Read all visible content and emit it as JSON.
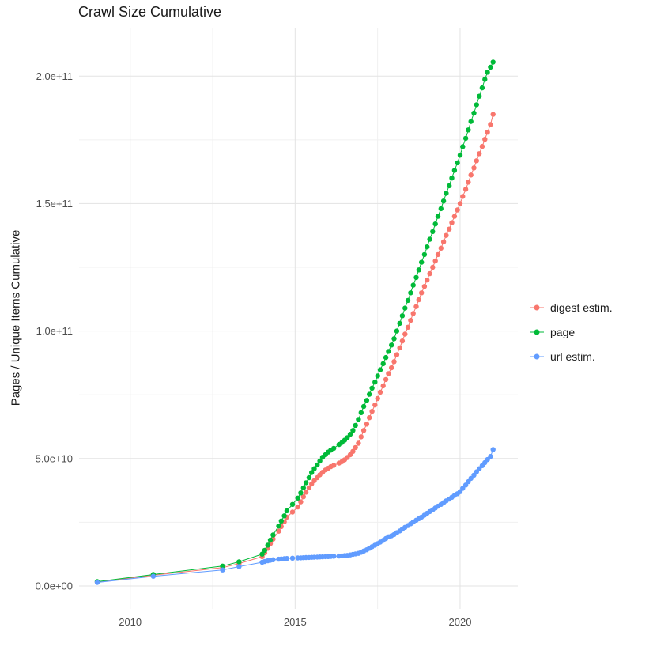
{
  "chart_data": {
    "type": "scatter",
    "title": "Crawl Size Cumulative",
    "xlabel": "",
    "ylabel": "Pages / Unique Items Cumulative",
    "legend_position": "right",
    "grid": true,
    "values_unit": "billions",
    "unit_multiplier": 1000000000,
    "x_years": [
      2009.0,
      2010.7,
      2012.8,
      2013.3,
      2014.0,
      2014.08,
      2014.17,
      2014.25,
      2014.33,
      2014.5,
      2014.58,
      2014.67,
      2014.75,
      2014.92,
      2015.08,
      2015.17,
      2015.25,
      2015.33,
      2015.42,
      2015.5,
      2015.58,
      2015.67,
      2015.75,
      2015.83,
      2015.92,
      2016.0,
      2016.08,
      2016.17,
      2016.33,
      2016.42,
      2016.5,
      2016.58,
      2016.67,
      2016.75,
      2016.83,
      2016.92,
      2017.0,
      2017.08,
      2017.17,
      2017.25,
      2017.33,
      2017.42,
      2017.5,
      2017.58,
      2017.67,
      2017.75,
      2017.83,
      2017.92,
      2018.0,
      2018.08,
      2018.17,
      2018.25,
      2018.33,
      2018.42,
      2018.5,
      2018.58,
      2018.67,
      2018.75,
      2018.83,
      2018.92,
      2019.0,
      2019.08,
      2019.17,
      2019.25,
      2019.33,
      2019.42,
      2019.5,
      2019.58,
      2019.67,
      2019.75,
      2019.83,
      2019.92,
      2020.0,
      2020.08,
      2020.17,
      2020.25,
      2020.33,
      2020.42,
      2020.5,
      2020.58,
      2020.67,
      2020.75,
      2020.83,
      2020.92,
      2021.0
    ],
    "series": [
      {
        "name": "digest estim.",
        "color": "#F8766D",
        "values": [
          1.5,
          4.2,
          7.2,
          8.8,
          11.5,
          13,
          14.8,
          16.6,
          18.4,
          21.5,
          23.3,
          25.2,
          27,
          29,
          31,
          33,
          35,
          36.8,
          38.5,
          40,
          41.3,
          42.5,
          43.6,
          44.6,
          45.5,
          46.2,
          46.8,
          47.3,
          48.2,
          48.8,
          49.5,
          50.4,
          51.5,
          52.8,
          54.3,
          56,
          58.5,
          61,
          63.5,
          66,
          68.5,
          71,
          73.5,
          76,
          78.5,
          81,
          83.3,
          85.6,
          88,
          90.7,
          93.4,
          96.1,
          98.8,
          101.5,
          104.2,
          106.9,
          109.6,
          112.3,
          115,
          117.5,
          120,
          122.5,
          125,
          127.5,
          130,
          132.5,
          135,
          137.5,
          140,
          142.5,
          145,
          147.5,
          150,
          152.8,
          155.6,
          158.4,
          161.2,
          164,
          166.8,
          169.6,
          172.4,
          175.2,
          178,
          181,
          185
        ]
      },
      {
        "name": "page",
        "color": "#00BA38",
        "values": [
          1.7,
          4.5,
          7.8,
          9.5,
          12.5,
          14,
          16,
          18,
          20,
          23.5,
          25.5,
          27.5,
          29.5,
          32,
          34.5,
          36.5,
          38.5,
          40.5,
          42.5,
          44.5,
          46,
          47.5,
          49,
          50.5,
          51.5,
          52.5,
          53.3,
          54,
          55.5,
          56.3,
          57.2,
          58.2,
          59.5,
          61,
          63,
          65.3,
          68,
          70.4,
          72.8,
          75.2,
          77.6,
          80,
          82.4,
          84.8,
          87.2,
          89.6,
          92,
          94.5,
          97,
          100,
          103,
          106,
          109,
          112,
          115,
          118,
          121,
          124,
          127,
          130,
          133,
          136,
          139,
          142,
          145,
          148,
          151,
          154,
          157,
          160,
          163,
          166,
          169,
          172.3,
          175.6,
          178.9,
          182.2,
          185.5,
          188.8,
          192.1,
          195.4,
          198.7,
          201.5,
          203.5,
          205.5
        ]
      },
      {
        "name": "url estim.",
        "color": "#619CFF",
        "values": [
          1.4,
          3.8,
          6.3,
          7.6,
          9.3,
          9.6,
          9.9,
          10.1,
          10.3,
          10.5,
          10.6,
          10.7,
          10.8,
          10.9,
          11.0,
          11.05,
          11.1,
          11.15,
          11.2,
          11.25,
          11.3,
          11.35,
          11.4,
          11.45,
          11.5,
          11.55,
          11.6,
          11.65,
          11.75,
          11.8,
          11.9,
          12.0,
          12.2,
          12.4,
          12.6,
          12.8,
          13.2,
          13.7,
          14.2,
          14.8,
          15.4,
          16.0,
          16.6,
          17.2,
          17.9,
          18.6,
          19.3,
          19.7,
          20.2,
          20.9,
          21.6,
          22.3,
          23.0,
          23.7,
          24.4,
          25.1,
          25.8,
          26.4,
          27.0,
          27.8,
          28.5,
          29.2,
          29.9,
          30.6,
          31.3,
          32.0,
          32.7,
          33.4,
          34.1,
          34.8,
          35.5,
          36.2,
          37.0,
          38.3,
          39.6,
          40.9,
          42.2,
          43.5,
          44.8,
          46.0,
          47.2,
          48.4,
          49.6,
          50.8,
          53.5
        ]
      }
    ],
    "x_axis": {
      "domain": [
        2008.45,
        2021.75
      ],
      "ticks": [
        2010,
        2015,
        2020
      ],
      "tick_labels": [
        "2010",
        "2015",
        "2020"
      ],
      "minor_ticks": [
        2012.5,
        2017.5
      ]
    },
    "y_axis": {
      "domain": [
        -9,
        219
      ],
      "ticks": [
        0,
        50,
        100,
        150,
        200
      ],
      "tick_labels": [
        "0.0e+00",
        "5.0e+10",
        "1.0e+11",
        "1.5e+11",
        "2.0e+11"
      ],
      "minor_ticks": [
        25,
        75,
        125,
        175
      ]
    }
  },
  "colors": {
    "background": "#FFFFFF",
    "grid_major": "#E3E3E3",
    "grid_minor": "#F0F0F0",
    "tick_text": "#4D4D4D",
    "title_text": "#1A1A1A"
  }
}
